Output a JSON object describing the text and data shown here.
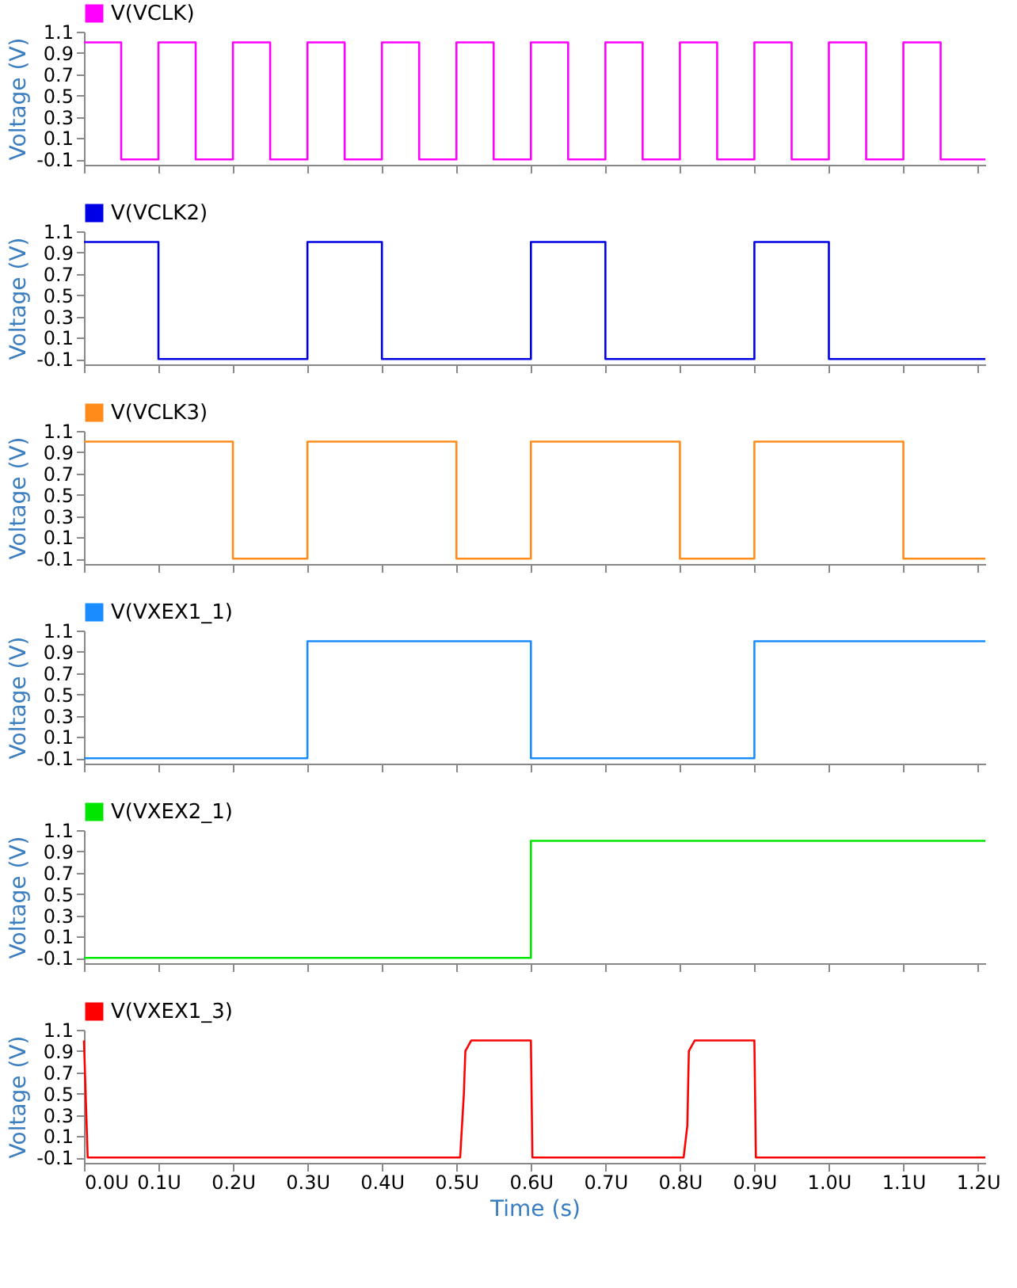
{
  "chart_data": [
    {
      "type": "step",
      "ylabel": "Voltage (V)",
      "legend": "top left",
      "tick_labels": "y",
      "xlim": [
        0,
        1.21
      ],
      "xticks": [
        {
          "value": 0,
          "label": null
        },
        {
          "value": 0.1,
          "label": null
        },
        {
          "value": 0.2,
          "label": null
        },
        {
          "value": 0.3,
          "label": null
        },
        {
          "value": 0.4,
          "label": null
        },
        {
          "value": 0.5,
          "label": null
        },
        {
          "value": 0.6,
          "label": null
        },
        {
          "value": 0.7,
          "label": null
        },
        {
          "value": 0.8,
          "label": null
        },
        {
          "value": 0.9,
          "label": null
        },
        {
          "value": 1.0,
          "label": null
        },
        {
          "value": 1.1,
          "label": null
        },
        {
          "value": 1.2,
          "label": null
        }
      ],
      "ylim": [
        -0.15,
        1.1
      ],
      "yticks": [
        -0.1,
        0.1,
        0.3,
        0.5,
        0.7,
        0.9,
        1.1
      ],
      "series": [
        {
          "name": "V(VCLK)",
          "color": "#ff00ff",
          "x": [
            0,
            0.05,
            0.1,
            0.15,
            0.2,
            0.25,
            0.3,
            0.35,
            0.4,
            0.45,
            0.5,
            0.55,
            0.6,
            0.65,
            0.7,
            0.75,
            0.8,
            0.85,
            0.9,
            0.95,
            1.0,
            1.05,
            1.1,
            1.15,
            1.21
          ],
          "values": [
            1,
            -0.1,
            1,
            -0.1,
            1,
            -0.1,
            1,
            -0.1,
            1,
            -0.1,
            1,
            -0.1,
            1,
            -0.1,
            1,
            -0.1,
            1,
            -0.1,
            1,
            -0.1,
            1,
            -0.1,
            1,
            -0.1,
            -0.1
          ]
        }
      ]
    },
    {
      "type": "step",
      "ylabel": "Voltage (V)",
      "legend": "top left",
      "tick_labels": "y",
      "xlim": [
        0,
        1.21
      ],
      "xticks": [
        {
          "value": 0,
          "label": null
        },
        {
          "value": 0.1,
          "label": null
        },
        {
          "value": 0.2,
          "label": null
        },
        {
          "value": 0.3,
          "label": null
        },
        {
          "value": 0.4,
          "label": null
        },
        {
          "value": 0.5,
          "label": null
        },
        {
          "value": 0.6,
          "label": null
        },
        {
          "value": 0.7,
          "label": null
        },
        {
          "value": 0.8,
          "label": null
        },
        {
          "value": 0.9,
          "label": null
        },
        {
          "value": 1.0,
          "label": null
        },
        {
          "value": 1.1,
          "label": null
        },
        {
          "value": 1.2,
          "label": null
        }
      ],
      "ylim": [
        -0.15,
        1.1
      ],
      "yticks": [
        -0.1,
        0.1,
        0.3,
        0.5,
        0.7,
        0.9,
        1.1
      ],
      "series": [
        {
          "name": "V(VCLK2)",
          "color": "#0000e6",
          "x": [
            0,
            0.1,
            0.3,
            0.4,
            0.6,
            0.7,
            0.9,
            1.0,
            1.21
          ],
          "values": [
            1,
            -0.1,
            1,
            -0.1,
            1,
            -0.1,
            1,
            -0.1,
            -0.1
          ]
        }
      ]
    },
    {
      "type": "step",
      "ylabel": "Voltage (V)",
      "legend": "top left",
      "tick_labels": "y",
      "xlim": [
        0,
        1.21
      ],
      "xticks": [
        {
          "value": 0,
          "label": null
        },
        {
          "value": 0.1,
          "label": null
        },
        {
          "value": 0.2,
          "label": null
        },
        {
          "value": 0.3,
          "label": null
        },
        {
          "value": 0.4,
          "label": null
        },
        {
          "value": 0.5,
          "label": null
        },
        {
          "value": 0.6,
          "label": null
        },
        {
          "value": 0.7,
          "label": null
        },
        {
          "value": 0.8,
          "label": null
        },
        {
          "value": 0.9,
          "label": null
        },
        {
          "value": 1.0,
          "label": null
        },
        {
          "value": 1.1,
          "label": null
        },
        {
          "value": 1.2,
          "label": null
        }
      ],
      "ylim": [
        -0.15,
        1.1
      ],
      "yticks": [
        -0.1,
        0.1,
        0.3,
        0.5,
        0.7,
        0.9,
        1.1
      ],
      "series": [
        {
          "name": "V(VCLK3)",
          "color": "#ff8c1a",
          "x": [
            0,
            0.2,
            0.3,
            0.5,
            0.6,
            0.8,
            0.9,
            1.1,
            1.21
          ],
          "values": [
            1,
            -0.1,
            1,
            -0.1,
            1,
            -0.1,
            1,
            -0.1,
            -0.1
          ]
        }
      ]
    },
    {
      "type": "step",
      "ylabel": "Voltage (V)",
      "legend": "top left",
      "tick_labels": "y",
      "xlim": [
        0,
        1.21
      ],
      "xticks": [
        {
          "value": 0,
          "label": null
        },
        {
          "value": 0.1,
          "label": null
        },
        {
          "value": 0.2,
          "label": null
        },
        {
          "value": 0.3,
          "label": null
        },
        {
          "value": 0.4,
          "label": null
        },
        {
          "value": 0.5,
          "label": null
        },
        {
          "value": 0.6,
          "label": null
        },
        {
          "value": 0.7,
          "label": null
        },
        {
          "value": 0.8,
          "label": null
        },
        {
          "value": 0.9,
          "label": null
        },
        {
          "value": 1.0,
          "label": null
        },
        {
          "value": 1.1,
          "label": null
        },
        {
          "value": 1.2,
          "label": null
        }
      ],
      "ylim": [
        -0.15,
        1.1
      ],
      "yticks": [
        -0.1,
        0.1,
        0.3,
        0.5,
        0.7,
        0.9,
        1.1
      ],
      "series": [
        {
          "name": "V(VXEX1_1)",
          "color": "#1a8cff",
          "x": [
            0,
            0.3,
            0.6,
            0.9,
            1.21
          ],
          "values": [
            -0.1,
            1,
            -0.1,
            1,
            1
          ]
        }
      ]
    },
    {
      "type": "step",
      "ylabel": "Voltage (V)",
      "legend": "top left",
      "tick_labels": "y",
      "xlim": [
        0,
        1.21
      ],
      "xticks": [
        {
          "value": 0,
          "label": null
        },
        {
          "value": 0.1,
          "label": null
        },
        {
          "value": 0.2,
          "label": null
        },
        {
          "value": 0.3,
          "label": null
        },
        {
          "value": 0.4,
          "label": null
        },
        {
          "value": 0.5,
          "label": null
        },
        {
          "value": 0.6,
          "label": null
        },
        {
          "value": 0.7,
          "label": null
        },
        {
          "value": 0.8,
          "label": null
        },
        {
          "value": 0.9,
          "label": null
        },
        {
          "value": 1.0,
          "label": null
        },
        {
          "value": 1.1,
          "label": null
        },
        {
          "value": 1.2,
          "label": null
        }
      ],
      "ylim": [
        -0.15,
        1.1
      ],
      "yticks": [
        -0.1,
        0.1,
        0.3,
        0.5,
        0.7,
        0.9,
        1.1
      ],
      "series": [
        {
          "name": "V(VXEX2_1)",
          "color": "#00e600",
          "x": [
            0,
            0.6,
            1.21
          ],
          "values": [
            -0.1,
            1,
            1
          ]
        }
      ]
    },
    {
      "type": "line",
      "ylabel": "Voltage (V)",
      "xlabel": "Time (s)",
      "legend": "top left",
      "xlim": [
        0,
        1.21
      ],
      "xticks": [
        {
          "value": 0,
          "label": "0.0U"
        },
        {
          "value": 0.1,
          "label": "0.1U"
        },
        {
          "value": 0.2,
          "label": "0.2U"
        },
        {
          "value": 0.3,
          "label": "0.3U"
        },
        {
          "value": 0.4,
          "label": "0.4U"
        },
        {
          "value": 0.5,
          "label": "0.5U"
        },
        {
          "value": 0.6,
          "label": "0.6U"
        },
        {
          "value": 0.7,
          "label": "0.7U"
        },
        {
          "value": 0.8,
          "label": "0.8U"
        },
        {
          "value": 0.9,
          "label": "0.9U"
        },
        {
          "value": 1.0,
          "label": "1.0U"
        },
        {
          "value": 1.1,
          "label": "1.1U"
        },
        {
          "value": 1.2,
          "label": "1.2U"
        }
      ],
      "ylim": [
        -0.15,
        1.1
      ],
      "yticks": [
        -0.1,
        0.1,
        0.3,
        0.5,
        0.7,
        0.9,
        1.1
      ],
      "series": [
        {
          "name": "V(VXEX1_3)",
          "color": "#ff0000",
          "x": [
            0,
            0.005,
            0.505,
            0.51,
            0.512,
            0.52,
            0.6,
            0.602,
            0.805,
            0.81,
            0.812,
            0.82,
            0.9,
            0.902,
            1.21
          ],
          "values": [
            1,
            -0.1,
            -0.1,
            0.5,
            0.9,
            1,
            1,
            -0.1,
            -0.1,
            0.2,
            0.9,
            1,
            1,
            -0.1,
            -0.1
          ]
        }
      ]
    }
  ]
}
